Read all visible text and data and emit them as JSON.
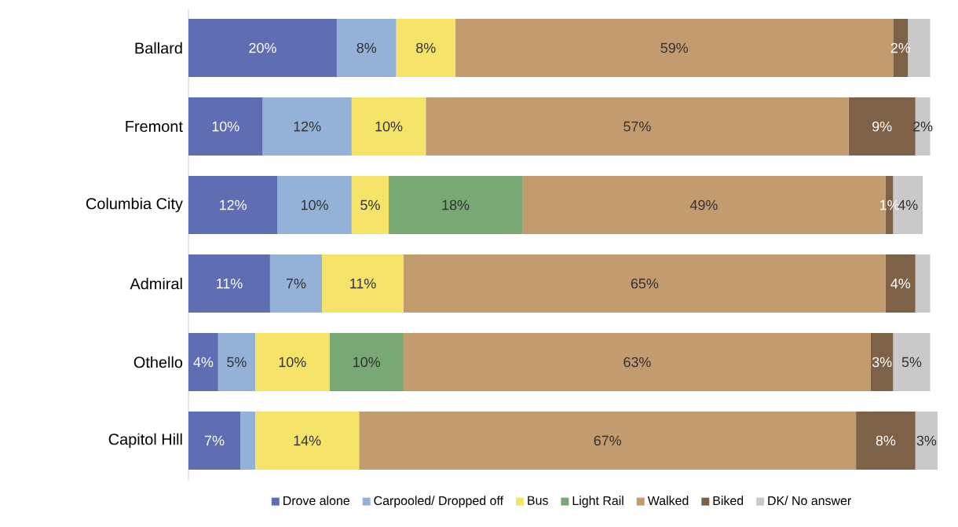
{
  "chart_data": {
    "type": "bar",
    "orientation": "horizontal",
    "stacked": true,
    "categories": [
      "Ballard",
      "Fremont",
      "Columbia City",
      "Admiral",
      "Othello",
      "Capitol Hill"
    ],
    "xlim": [
      0,
      101
    ],
    "tick_labels": "y",
    "legend": "bottom",
    "series": [
      {
        "name": "Drove alone",
        "color": "#5f6db3",
        "values": [
          20,
          10,
          12,
          11,
          4,
          7
        ],
        "value_labels": [
          "20%",
          "10%",
          "12%",
          "11%",
          "4%",
          "7%"
        ]
      },
      {
        "name": "Carpooled/ Dropped off",
        "color": "#94b2d8",
        "values": [
          8,
          12,
          10,
          7,
          5,
          2
        ],
        "value_labels": [
          "8%",
          "12%",
          "10%",
          "7%",
          "5%",
          null
        ]
      },
      {
        "name": "Bus",
        "color": "#f6e46a",
        "values": [
          8,
          10,
          5,
          11,
          10,
          14
        ],
        "value_labels": [
          "8%",
          "10%",
          "5%",
          "11%",
          "10%",
          "14%"
        ]
      },
      {
        "name": "Light Rail",
        "color": "#78a874",
        "values": [
          null,
          null,
          18,
          null,
          10,
          null
        ],
        "value_labels": [
          null,
          null,
          "18%",
          null,
          "10%",
          null
        ]
      },
      {
        "name": "Walked",
        "color": "#c29c6e",
        "values": [
          59,
          57,
          49,
          65,
          63,
          67
        ],
        "value_labels": [
          "59%",
          "57%",
          "49%",
          "65%",
          "63%",
          "67%"
        ]
      },
      {
        "name": "Biked",
        "color": "#7e6248",
        "values": [
          2,
          9,
          1,
          4,
          3,
          8
        ],
        "value_labels": [
          "2%",
          "9%",
          "1%",
          "4%",
          "3%",
          "8%"
        ]
      },
      {
        "name": "DK/ No answer",
        "color": "#c9c9c9",
        "values": [
          3,
          2,
          4,
          2,
          5,
          3
        ],
        "value_labels": [
          null,
          "2%",
          "4%",
          null,
          "5%",
          "3%"
        ]
      }
    ]
  }
}
